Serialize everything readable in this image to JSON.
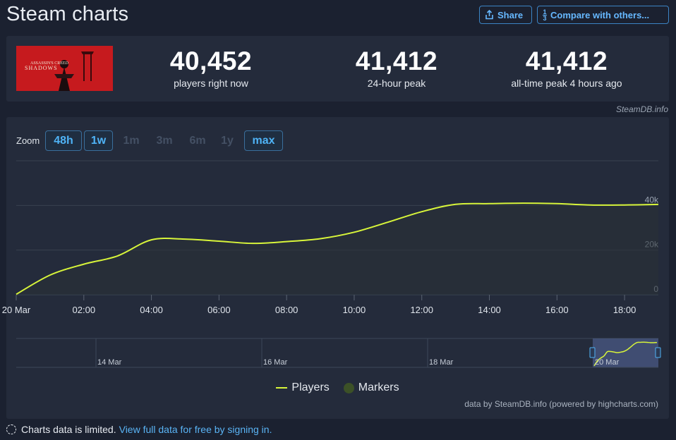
{
  "page": {
    "title": "Steam charts"
  },
  "actions": {
    "share_label": "Share",
    "compare_label": "Compare with others..."
  },
  "game": {
    "logo_text_top": "ASSASSIN'S CREED",
    "logo_text_bottom": "SHADOWS"
  },
  "stats": [
    {
      "value": "40,452",
      "label": "players right now"
    },
    {
      "value": "41,412",
      "label": "24-hour peak"
    },
    {
      "value": "41,412",
      "label": "all-time peak 4 hours ago"
    }
  ],
  "credit": "SteamDB.info",
  "zoom": {
    "label": "Zoom",
    "options": [
      {
        "label": "48h",
        "state": "active"
      },
      {
        "label": "1w",
        "state": "active"
      },
      {
        "label": "1m",
        "state": "disabled"
      },
      {
        "label": "3m",
        "state": "disabled"
      },
      {
        "label": "6m",
        "state": "disabled"
      },
      {
        "label": "1y",
        "state": "disabled"
      },
      {
        "label": "max",
        "state": "active"
      }
    ]
  },
  "chart_data": {
    "type": "area",
    "title": "",
    "xlabel": "",
    "ylabel": "",
    "x_unit": "hours after 20 Mar 00:00",
    "xlim": [
      0,
      19
    ],
    "ylim": [
      0,
      60000
    ],
    "y_ticks": [
      0,
      20000,
      40000
    ],
    "y_tick_labels": [
      "0",
      "20k",
      "40k"
    ],
    "x_ticks": [
      0,
      2,
      4,
      6,
      8,
      10,
      12,
      14,
      16,
      18
    ],
    "x_tick_labels": [
      "20 Mar",
      "02:00",
      "04:00",
      "06:00",
      "08:00",
      "10:00",
      "12:00",
      "14:00",
      "16:00",
      "18:00"
    ],
    "grid": true,
    "legend_position": "bottom-center",
    "colors": {
      "line": "#d8f53a",
      "fill": "#2a3236",
      "markers": "#3c5127"
    },
    "series": [
      {
        "name": "Players",
        "x": [
          0,
          1,
          2,
          3,
          4,
          5,
          6,
          7,
          8,
          9,
          10,
          11,
          12,
          13,
          14,
          15,
          16,
          17,
          18,
          19
        ],
        "values": [
          200,
          8800,
          13700,
          17400,
          24600,
          24900,
          24000,
          23000,
          23800,
          25100,
          28000,
          32500,
          37200,
          40500,
          40800,
          41000,
          40800,
          40200,
          40200,
          40452
        ]
      }
    ],
    "legend": [
      "Players",
      "Markers"
    ],
    "navigator": {
      "labels": [
        "14 Mar",
        "16 Mar",
        "18 Mar",
        "20 Mar"
      ]
    }
  },
  "chart_credit": "data by SteamDB.info (powered by highcharts.com)",
  "footer": {
    "note": "Charts data is limited.",
    "link": "View full data for free by signing in."
  }
}
